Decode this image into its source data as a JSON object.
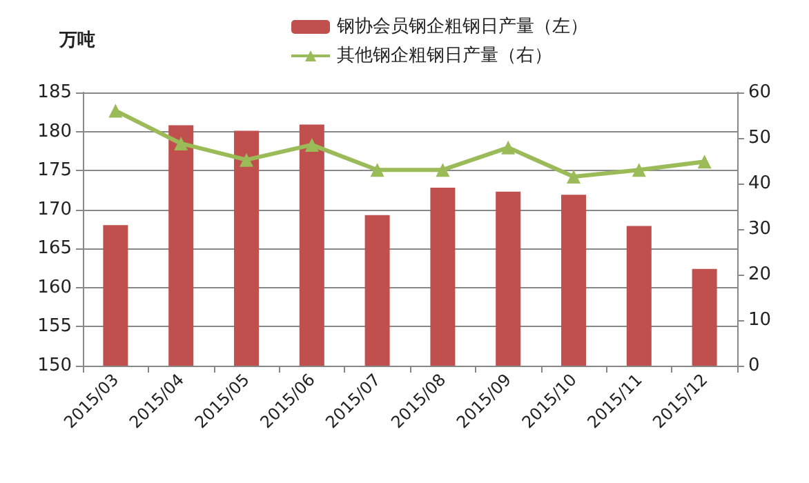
{
  "chart_data": {
    "type": "bar",
    "ylabel": "万吨",
    "categories": [
      "2015/03",
      "2015/04",
      "2015/05",
      "2015/06",
      "2015/07",
      "2015/08",
      "2015/09",
      "2015/10",
      "2015/11",
      "2015/12"
    ],
    "series": [
      {
        "name": "钢协会员钢企粗钢日产量（左）",
        "color": "#c0504d",
        "values": [
          168,
          180.8,
          180.1,
          180.9,
          169.3,
          172.8,
          172.3,
          171.9,
          167.9,
          162.4
        ]
      },
      {
        "name": "其他钢企粗钢日产量（右）",
        "type": "line",
        "axis": "y2",
        "color": "#9bbb59",
        "values": [
          56,
          48.8,
          45.2,
          48.5,
          43,
          43,
          47.9,
          41.5,
          43,
          44.8
        ]
      }
    ],
    "ylim": [
      150,
      185
    ],
    "yticks": [
      150,
      155,
      160,
      165,
      170,
      175,
      180,
      185
    ],
    "y2lim": [
      0,
      60
    ],
    "y2ticks": [
      0,
      10,
      20,
      30,
      40,
      50,
      60
    ],
    "grid": "y",
    "legend": "top",
    "marker": "triangle",
    "line_style": "solid"
  }
}
